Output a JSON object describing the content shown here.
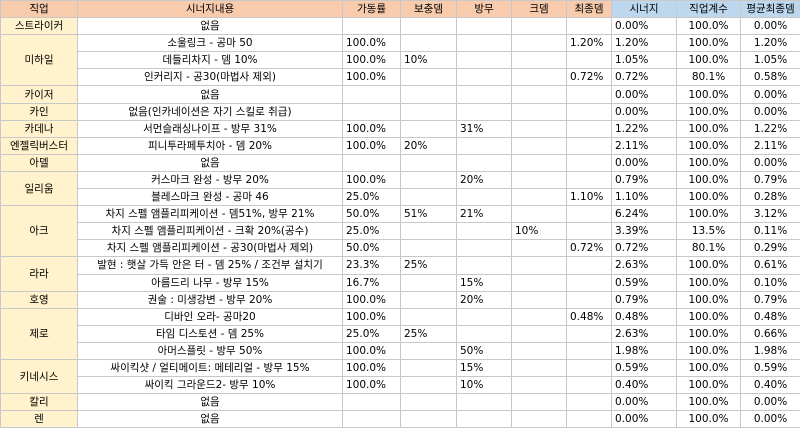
{
  "headers": [
    "직업",
    "시너지내용",
    "가동률",
    "보충뎀",
    "방무",
    "크뎀",
    "최종뎀",
    "시너지",
    "직업계수",
    "평균최종뎀"
  ],
  "jobs": [
    {
      "name": "스트라이커",
      "rows": [
        {
          "synergy": "없음",
          "uptime": "",
          "dmg": "",
          "ied": "",
          "cdmg": "",
          "final": "",
          "syn": "0.00%",
          "coef": "100.0%",
          "avg": "0.00%"
        }
      ]
    },
    {
      "name": "미하일",
      "rows": [
        {
          "synergy": "소울링크 - 공마 50",
          "uptime": "100.0%",
          "dmg": "",
          "ied": "",
          "cdmg": "",
          "final": "1.20%",
          "syn": "1.20%",
          "coef": "100.0%",
          "avg": "1.20%"
        },
        {
          "synergy": "데들리차지 - 뎀 10%",
          "uptime": "100.0%",
          "dmg": "10%",
          "ied": "",
          "cdmg": "",
          "final": "",
          "syn": "1.05%",
          "coef": "100.0%",
          "avg": "1.05%"
        },
        {
          "synergy": "인커리지 - 공30(마법사 제외)",
          "uptime": "100.0%",
          "dmg": "",
          "ied": "",
          "cdmg": "",
          "final": "0.72%",
          "syn": "0.72%",
          "coef": "80.1%",
          "avg": "0.58%"
        }
      ]
    },
    {
      "name": "카이저",
      "rows": [
        {
          "synergy": "없음",
          "uptime": "",
          "dmg": "",
          "ied": "",
          "cdmg": "",
          "final": "",
          "syn": "0.00%",
          "coef": "100.0%",
          "avg": "0.00%"
        }
      ]
    },
    {
      "name": "카인",
      "rows": [
        {
          "synergy": "없음(인카네이션은 자기 스킬로 취급)",
          "uptime": "",
          "dmg": "",
          "ied": "",
          "cdmg": "",
          "final": "",
          "syn": "0.00%",
          "coef": "100.0%",
          "avg": "0.00%"
        }
      ]
    },
    {
      "name": "카데나",
      "rows": [
        {
          "synergy": "서먼슬래싱나이프 - 방무 31%",
          "uptime": "100.0%",
          "dmg": "",
          "ied": "31%",
          "cdmg": "",
          "final": "",
          "syn": "1.22%",
          "coef": "100.0%",
          "avg": "1.22%"
        }
      ]
    },
    {
      "name": "엔젤릭버스터",
      "rows": [
        {
          "synergy": "피니투라페투치아 - 뎀 20%",
          "uptime": "100.0%",
          "dmg": "20%",
          "ied": "",
          "cdmg": "",
          "final": "",
          "syn": "2.11%",
          "coef": "100.0%",
          "avg": "2.11%"
        }
      ]
    },
    {
      "name": "아델",
      "rows": [
        {
          "synergy": "없음",
          "uptime": "",
          "dmg": "",
          "ied": "",
          "cdmg": "",
          "final": "",
          "syn": "0.00%",
          "coef": "100.0%",
          "avg": "0.00%"
        }
      ]
    },
    {
      "name": "일리움",
      "rows": [
        {
          "synergy": "커스마크 완성 - 방무 20%",
          "uptime": "100.0%",
          "dmg": "",
          "ied": "20%",
          "cdmg": "",
          "final": "",
          "syn": "0.79%",
          "coef": "100.0%",
          "avg": "0.79%"
        },
        {
          "synergy": "블레스마크 완성 - 공마 46",
          "uptime": "25.0%",
          "dmg": "",
          "ied": "",
          "cdmg": "",
          "final": "1.10%",
          "syn": "1.10%",
          "coef": "100.0%",
          "avg": "0.28%"
        }
      ]
    },
    {
      "name": "아크",
      "rows": [
        {
          "synergy": "차지 스펠 앰플리피케이션 - 뎀51%, 방무 21%",
          "uptime": "50.0%",
          "dmg": "51%",
          "ied": "21%",
          "cdmg": "",
          "final": "",
          "syn": "6.24%",
          "coef": "100.0%",
          "avg": "3.12%"
        },
        {
          "synergy": "차지 스펠 앰플리피케이션 - 크확 20%(공수)",
          "uptime": "25.0%",
          "dmg": "",
          "ied": "",
          "cdmg": "10%",
          "final": "",
          "syn": "3.39%",
          "coef": "13.5%",
          "avg": "0.11%"
        },
        {
          "synergy": "차지 스펠 앰플리피케이션 - 공30(마법사 제외)",
          "uptime": "50.0%",
          "dmg": "",
          "ied": "",
          "cdmg": "",
          "final": "0.72%",
          "syn": "0.72%",
          "coef": "80.1%",
          "avg": "0.29%"
        }
      ]
    },
    {
      "name": "라라",
      "rows": [
        {
          "synergy": "발현 : 햇살 가득 안은 터 - 뎀 25% / 조건부 설치기",
          "uptime": "23.3%",
          "dmg": "25%",
          "ied": "",
          "cdmg": "",
          "final": "",
          "syn": "2.63%",
          "coef": "100.0%",
          "avg": "0.61%"
        },
        {
          "synergy": "아름드리 나무 - 방무 15%",
          "uptime": "16.7%",
          "dmg": "",
          "ied": "15%",
          "cdmg": "",
          "final": "",
          "syn": "0.59%",
          "coef": "100.0%",
          "avg": "0.10%"
        }
      ]
    },
    {
      "name": "호영",
      "rows": [
        {
          "synergy": "권술 : 미생강변 - 방무 20%",
          "uptime": "100.0%",
          "dmg": "",
          "ied": "20%",
          "cdmg": "",
          "final": "",
          "syn": "0.79%",
          "coef": "100.0%",
          "avg": "0.79%"
        }
      ]
    },
    {
      "name": "제로",
      "rows": [
        {
          "synergy": "디바인 오라- 공마20",
          "uptime": "100.0%",
          "dmg": "",
          "ied": "",
          "cdmg": "",
          "final": "0.48%",
          "syn": "0.48%",
          "coef": "100.0%",
          "avg": "0.48%"
        },
        {
          "synergy": "타임 디스토션 - 뎀 25%",
          "uptime": "25.0%",
          "dmg": "25%",
          "ied": "",
          "cdmg": "",
          "final": "",
          "syn": "2.63%",
          "coef": "100.0%",
          "avg": "0.66%"
        },
        {
          "synergy": "아머스플릿 - 방무 50%",
          "uptime": "100.0%",
          "dmg": "",
          "ied": "50%",
          "cdmg": "",
          "final": "",
          "syn": "1.98%",
          "coef": "100.0%",
          "avg": "1.98%"
        }
      ]
    },
    {
      "name": "키네시스",
      "rows": [
        {
          "synergy": "싸이킥샷 / 얼티메이트: 메테리얼 - 방무 15%",
          "uptime": "100.0%",
          "dmg": "",
          "ied": "15%",
          "cdmg": "",
          "final": "",
          "syn": "0.59%",
          "coef": "100.0%",
          "avg": "0.59%"
        },
        {
          "synergy": "싸이킥 그라운드2- 방무 10%",
          "uptime": "100.0%",
          "dmg": "",
          "ied": "10%",
          "cdmg": "",
          "final": "",
          "syn": "0.40%",
          "coef": "100.0%",
          "avg": "0.40%"
        }
      ]
    },
    {
      "name": "칼리",
      "rows": [
        {
          "synergy": "없음",
          "uptime": "",
          "dmg": "",
          "ied": "",
          "cdmg": "",
          "final": "",
          "syn": "0.00%",
          "coef": "100.0%",
          "avg": "0.00%"
        }
      ]
    },
    {
      "name": "렌",
      "rows": [
        {
          "synergy": "없음",
          "uptime": "",
          "dmg": "",
          "ied": "",
          "cdmg": "",
          "final": "",
          "syn": "0.00%",
          "coef": "100.0%",
          "avg": "0.00%"
        }
      ]
    }
  ],
  "colors": {
    "header_peach": "#f8cbad",
    "header_blue": "#bdd7ee",
    "job_cell": "#fff2cc",
    "grid": "#c8c8c8"
  }
}
